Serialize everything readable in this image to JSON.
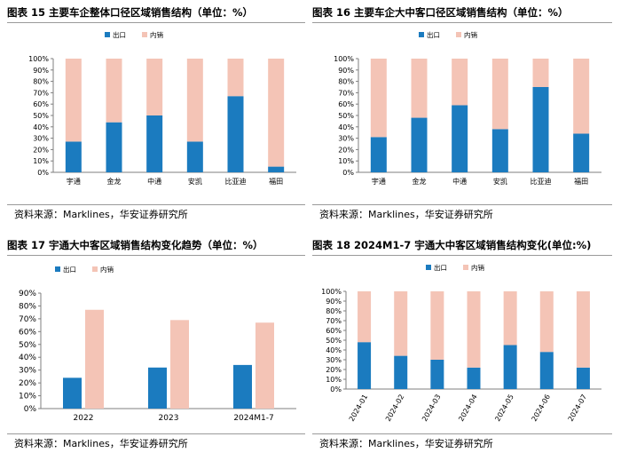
{
  "colors": {
    "export": "#1b7bbf",
    "domestic": "#f4c4b6",
    "axis": "#7f7f7f"
  },
  "panels": [
    {
      "title": "图表 15  主要车企整体口径区域销售结构（单位：%）",
      "source": "资料来源：Marklines，华安证券研究所"
    },
    {
      "title": "图表 16  主要车企大中客口径区域销售结构（单位：%）",
      "source": "资料来源：Marklines，华安证券研究所"
    },
    {
      "title": "图表 17  宇通大中客区域销售结构变化趋势（单位：%）",
      "source": "资料来源：Marklines，华安证券研究所"
    },
    {
      "title": "图表 18 2024M1-7 宇通大中客区域销售结构变化(单位:%)",
      "source": "资料来源：Marklines，华安证券研究所"
    }
  ],
  "chart_data": [
    {
      "type": "bar",
      "stacked": true,
      "title": "图表 15  主要车企整体口径区域销售结构（单位：%）",
      "categories": [
        "宇通",
        "金龙",
        "中通",
        "安凯",
        "比亚迪",
        "福田"
      ],
      "series": [
        {
          "name": "出口",
          "values": [
            27,
            44,
            50,
            27,
            67,
            5
          ]
        },
        {
          "name": "内销",
          "values": [
            73,
            56,
            50,
            73,
            33,
            95
          ]
        }
      ],
      "ylim": [
        0,
        100
      ],
      "yticks": [
        "0%",
        "10%",
        "20%",
        "30%",
        "40%",
        "50%",
        "60%",
        "70%",
        "80%",
        "90%",
        "100%"
      ],
      "legend": "top-left"
    },
    {
      "type": "bar",
      "stacked": true,
      "title": "图表 16  主要车企大中客口径区域销售结构（单位：%）",
      "categories": [
        "宇通",
        "金龙",
        "中通",
        "安凯",
        "比亚迪",
        "福田"
      ],
      "series": [
        {
          "name": "出口",
          "values": [
            31,
            48,
            59,
            38,
            75,
            34
          ]
        },
        {
          "name": "内销",
          "values": [
            69,
            52,
            41,
            62,
            25,
            66
          ]
        }
      ],
      "ylim": [
        0,
        100
      ],
      "yticks": [
        "0%",
        "10%",
        "20%",
        "30%",
        "40%",
        "50%",
        "60%",
        "70%",
        "80%",
        "90%",
        "100%"
      ],
      "legend": "top-left"
    },
    {
      "type": "bar",
      "stacked": false,
      "title": "图表 17  宇通大中客区域销售结构变化趋势（单位：%）",
      "categories": [
        "2022",
        "2023",
        "2024M1-7"
      ],
      "series": [
        {
          "name": "出口",
          "values": [
            24,
            32,
            34
          ]
        },
        {
          "name": "内销",
          "values": [
            77,
            69,
            67
          ]
        }
      ],
      "ylim": [
        0,
        90
      ],
      "yticks": [
        "0%",
        "10%",
        "20%",
        "30%",
        "40%",
        "50%",
        "60%",
        "70%",
        "80%",
        "90%"
      ],
      "legend": "top-left"
    },
    {
      "type": "bar",
      "stacked": true,
      "title": "图表 18 2024M1-7 宇通大中客区域销售结构变化(单位:%)",
      "categories": [
        "2024-01",
        "2024-02",
        "2024-03",
        "2024-04",
        "2024-05",
        "2024-06",
        "2024-07"
      ],
      "series": [
        {
          "name": "出口",
          "values": [
            48,
            34,
            30,
            22,
            45,
            38,
            22
          ]
        },
        {
          "name": "内销",
          "values": [
            52,
            66,
            70,
            78,
            55,
            62,
            78
          ]
        }
      ],
      "ylim": [
        0,
        100
      ],
      "yticks": [
        "0%",
        "10%",
        "20%",
        "30%",
        "40%",
        "50%",
        "60%",
        "70%",
        "80%",
        "90%",
        "100%"
      ],
      "legend": "top-left"
    }
  ]
}
